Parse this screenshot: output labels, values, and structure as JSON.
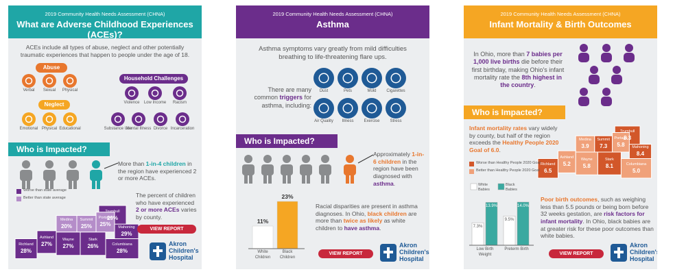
{
  "cards": [
    {
      "subtitle": "2019 Community Health Needs Assessment (CHNA)",
      "title": "What are Adverse Childhood Experiences (ACEs)?",
      "intro": "ACEs include all types of abuse, neglect and other potentially traumatic experiences that happen to people under the age of 18.",
      "abuse": {
        "label": "Abuse",
        "items": [
          "Verbal",
          "Sexual",
          "Physical"
        ]
      },
      "household": {
        "label": "Household Challenges",
        "items": [
          "Violence",
          "Low Income",
          "Racism",
          "Substance Use",
          "Mental Illness",
          "Divorce",
          "Incarceration"
        ]
      },
      "neglect": {
        "label": "Neglect",
        "items": [
          "Emotional",
          "Physical",
          "Educational"
        ]
      },
      "impact_title": "Who is Impacted?",
      "stat": [
        "More than ",
        "1-in-4 children",
        " in the region have experienced 2 or more ACEs."
      ],
      "legend": [
        "Worse than state average",
        "Better than state average"
      ],
      "counties": [
        {
          "name": "Trumbull",
          "value": "29%",
          "worse": true
        },
        {
          "name": "Medina",
          "value": "20%",
          "worse": false
        },
        {
          "name": "Summit",
          "value": "25%",
          "worse": false
        },
        {
          "name": "Portage",
          "value": "25%",
          "worse": false
        },
        {
          "name": "Mahoning",
          "value": "29%",
          "worse": true
        },
        {
          "name": "Richland",
          "value": "28%",
          "worse": true
        },
        {
          "name": "Ashland",
          "value": "27%",
          "worse": true
        },
        {
          "name": "Wayne",
          "value": "27%",
          "worse": true
        },
        {
          "name": "Stark",
          "value": "26%",
          "worse": true
        },
        {
          "name": "Columbiana",
          "value": "28%",
          "worse": true
        }
      ],
      "map_text": [
        "The percent of children who have experienced ",
        "2 or more ACEs",
        " varies by county."
      ],
      "button": "VIEW REPORT",
      "logo": [
        "Akron",
        "Children's",
        "Hospital"
      ]
    },
    {
      "subtitle": "2019 Community Health Needs Assessment (CHNA)",
      "title": "Asthma",
      "intro": "Asthma symptoms vary greatly from mild difficulties breathing to life-threatening flare ups.",
      "triggers_text": [
        "There are many common ",
        "triggers",
        " for asthma, including:"
      ],
      "triggers": [
        "Dust",
        "Pets",
        "Mold",
        "Cigarettes",
        "Air Quality",
        "Illness",
        "Exercise",
        "Stress"
      ],
      "impact_title": "Who is Impacted?",
      "stat": [
        "Approximately ",
        "1-in-6 children",
        " in the region have been diagnosed with ",
        "asthma",
        "."
      ],
      "bars": {
        "categories": [
          "White Children",
          "Black Children"
        ],
        "values": [
          11,
          23
        ],
        "value_labels": [
          "11%",
          "23%"
        ],
        "colors": [
          "#ffffff",
          "#f5a623"
        ]
      },
      "disparity": [
        "Racial disparities are present in asthma diagnoses. In Ohio, ",
        "black children",
        " are more than ",
        "twice as likely",
        " as white children to ",
        "have asthma",
        "."
      ],
      "button": "VIEW REPORT",
      "logo": [
        "Akron",
        "Children's",
        "Hospital"
      ]
    },
    {
      "subtitle": "2019 Community Health Needs Assessment (CHNA)",
      "title": "Infant Mortality & Birth Outcomes",
      "intro": [
        "In Ohio, more than ",
        "7 babies per 1,000 live births",
        " die before their first birthday, making Ohio's infant mortality rate the ",
        "8th highest in the country",
        "."
      ],
      "impact_title": "Who is Impacted?",
      "map_text": [
        "Infant mortality rates",
        " vary widely by county, but half of the region exceeds the ",
        "Healthy People 2020 Goal of 6.0",
        "."
      ],
      "legend": [
        "Worse than Healthy People 2020 Goal",
        "Better than Healthy People 2020 Goal"
      ],
      "counties": [
        {
          "name": "Trumbull",
          "value": "8.3",
          "worse": true
        },
        {
          "name": "Medina",
          "value": "3.9",
          "worse": false
        },
        {
          "name": "Summit",
          "value": "7.3",
          "worse": true
        },
        {
          "name": "Portage",
          "value": "5.8",
          "worse": false
        },
        {
          "name": "Mahoning",
          "value": "8.4",
          "worse": true
        },
        {
          "name": "Richland",
          "value": "6.5",
          "worse": true
        },
        {
          "name": "Ashland",
          "value": "5.2",
          "worse": false
        },
        {
          "name": "Wayne",
          "value": "5.8",
          "worse": false
        },
        {
          "name": "Stark",
          "value": "8.1",
          "worse": true
        },
        {
          "name": "Columbiana",
          "value": "5.0",
          "worse": false
        }
      ],
      "bar_legend": [
        "White Babies",
        "Black Babies"
      ],
      "bar_groups": [
        {
          "label": "Low Birth Weight",
          "values": [
            7.3,
            13.9
          ],
          "value_labels": [
            "7.3%",
            "13.9%"
          ]
        },
        {
          "label": "Preterm Birth",
          "values": [
            9.5,
            14.0
          ],
          "value_labels": [
            "9.5%",
            "14.0%"
          ]
        }
      ],
      "birth_text": [
        "Poor birth outcomes",
        ", such as weighing less than 5.5 pounds or being born before 32 weeks gestation, are ",
        "risk factors for infant mortality",
        ". In Ohio, black babies are at greater risk for these poor outcomes than white babies."
      ],
      "button": "VIEW REPORT",
      "logo": [
        "Akron",
        "Children's",
        "Hospital"
      ]
    }
  ]
}
